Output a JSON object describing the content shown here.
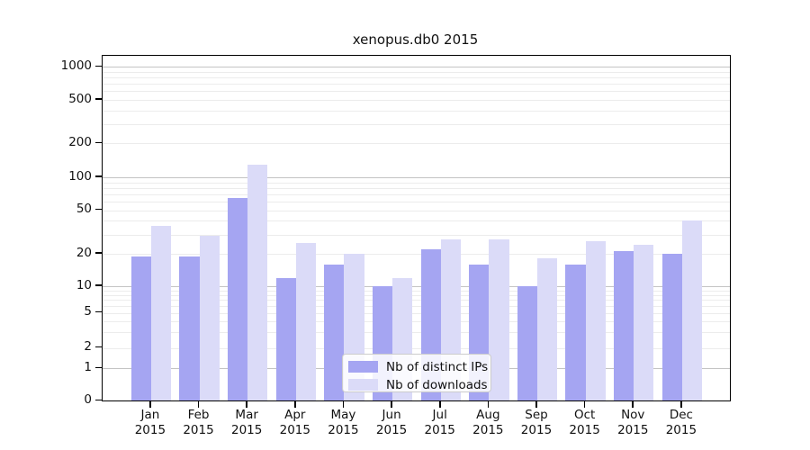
{
  "chart_data": {
    "type": "bar",
    "title": "xenopus.db0 2015",
    "categories": [
      "Jan",
      "Feb",
      "Mar",
      "Apr",
      "May",
      "Jun",
      "Jul",
      "Aug",
      "Sep",
      "Oct",
      "Nov",
      "Dec"
    ],
    "year": "2015",
    "series": [
      {
        "name": "Nb of distinct IPs",
        "color": "#a5a5f2",
        "values": [
          19,
          19,
          65,
          12,
          16,
          10,
          22,
          16,
          10,
          16,
          21,
          20
        ]
      },
      {
        "name": "Nb of downloads",
        "color": "#dbdbf8",
        "values": [
          36,
          29,
          130,
          25,
          20,
          12,
          27,
          27,
          18,
          26,
          24,
          40
        ]
      }
    ],
    "yticks": [
      0,
      1,
      2,
      5,
      10,
      20,
      50,
      100,
      200,
      500,
      1000
    ],
    "yscale": "symlog",
    "ylim": [
      0,
      1260
    ],
    "xlabel": "",
    "ylabel": "",
    "grid": true,
    "legend_position": "lower-center",
    "colors": {
      "major_grid": "#c4c4c4",
      "minor_grid": "#ececec",
      "axis": "#000000",
      "legend_border": "#cccccc",
      "legend_background": "rgba(255,255,255,0.85)",
      "background": "#ffffff",
      "text": "#111111"
    }
  }
}
